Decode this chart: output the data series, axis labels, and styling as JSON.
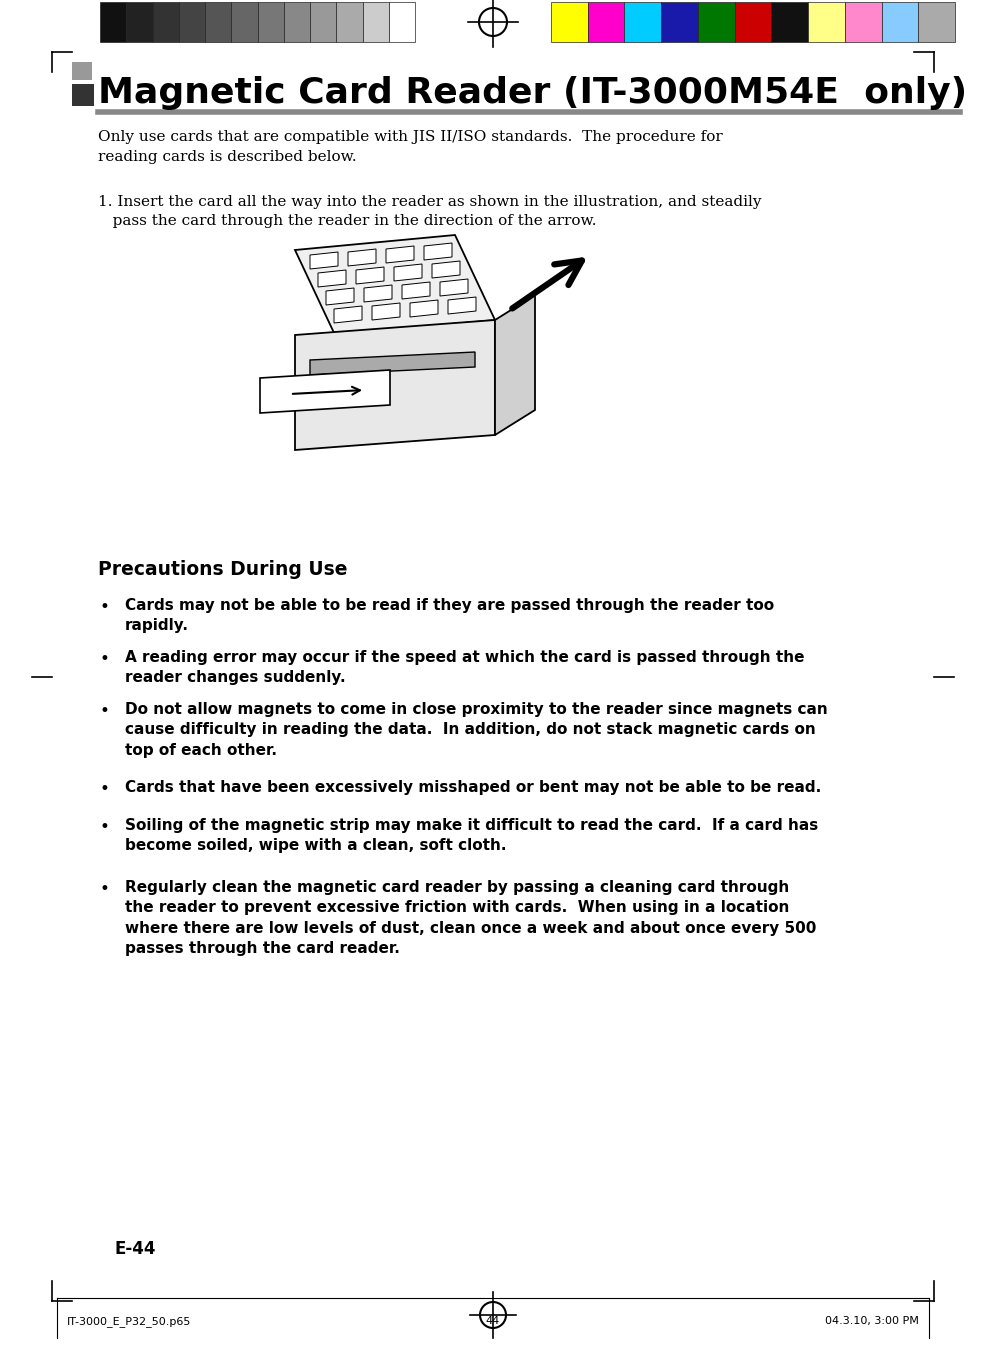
{
  "bg_color": "#ffffff",
  "title": "Magnetic Card Reader (IT-3000M54E  only)",
  "title_fontsize": 26,
  "intro_text": "Only use cards that are compatible with JIS II/ISO standards.  The procedure for\nreading cards is described below.",
  "step1_text": "1. Insert the card all the way into the reader as shown in the illustration, and steadily\n   pass the card through the reader in the direction of the arrow.",
  "precautions_title": "Precautions During Use",
  "bullets": [
    "Cards may not be able to be read if they are passed through the reader too\nrapidly.",
    "A reading error may occur if the speed at which the card is passed through the\nreader changes suddenly.",
    "Do not allow magnets to come in close proximity to the reader since magnets can\ncause difficulty in reading the data.  In addition, do not stack magnetic cards on\ntop of each other.",
    "Cards that have been excessively misshaped or bent may not be able to be read.",
    "Soiling of the magnetic strip may make it difficult to read the card.  If a card has\nbecome soiled, wipe with a clean, soft cloth.",
    "Regularly clean the magnetic card reader by passing a cleaning card through\nthe reader to prevent excessive friction with cards.  When using in a location\nwhere there are low levels of dust, clean once a week and about once every 500\npasses through the card reader."
  ],
  "page_label": "E-44",
  "footer_left": "IT-3000_E_P32_50.p65",
  "footer_center": "44",
  "footer_right": "04.3.10, 3:00 PM",
  "grayscale_colors": [
    "#111111",
    "#222222",
    "#333333",
    "#444444",
    "#555555",
    "#666666",
    "#777777",
    "#888888",
    "#999999",
    "#aaaaaa",
    "#cccccc",
    "#ffffff"
  ],
  "color_swatches": [
    "#ffff00",
    "#ff00cc",
    "#00ccff",
    "#1a1aaa",
    "#007700",
    "#cc0000",
    "#111111",
    "#ffff88",
    "#ff88cc",
    "#88ccff",
    "#aaaaaa"
  ],
  "swatch_border": "#222222"
}
